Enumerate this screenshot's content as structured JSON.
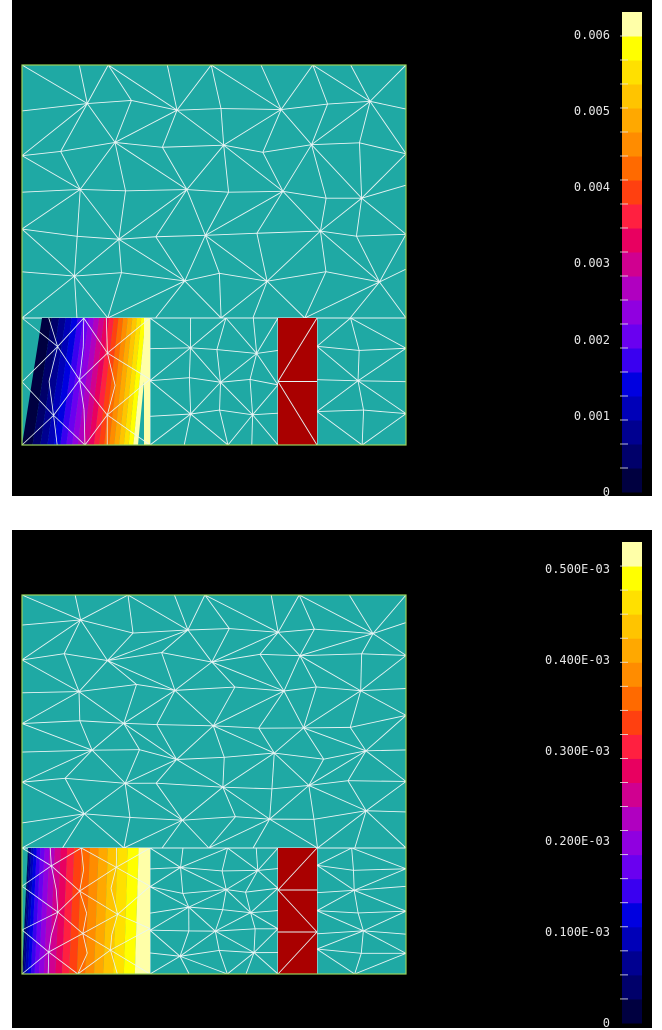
{
  "colors": {
    "background": "#000000",
    "mesh_fill": "#1fa9a4",
    "mesh_edge": "#e8f4f4",
    "boundary": "#9ad35a",
    "red_block": "#a90000"
  },
  "colorscale": [
    "#000040",
    "#00006a",
    "#000090",
    "#0000b8",
    "#0000e0",
    "#3a00f0",
    "#6a00f0",
    "#9000e0",
    "#b000c0",
    "#d00090",
    "#e80060",
    "#ff2040",
    "#ff4010",
    "#ff6a00",
    "#ff8c00",
    "#ffa800",
    "#ffc400",
    "#ffe000",
    "#ffff00",
    "#ffffa8"
  ],
  "panels": [
    {
      "name": "top",
      "scale_labels": [
        "0.006",
        "0.005",
        "0.004",
        "0.003",
        "0.002",
        "0.001",
        "0"
      ],
      "scale_values": [
        0.006,
        0.005,
        0.004,
        0.003,
        0.002,
        0.001,
        0
      ],
      "scale_max": 0.0063
    },
    {
      "name": "bottom",
      "scale_labels": [
        "0.500E-03",
        "0.400E-03",
        "0.300E-03",
        "0.200E-03",
        "0.100E-03",
        "0"
      ],
      "scale_values": [
        0.0005,
        0.0004,
        0.0003,
        0.0002,
        0.0001,
        0
      ],
      "scale_max": 0.00053
    }
  ]
}
